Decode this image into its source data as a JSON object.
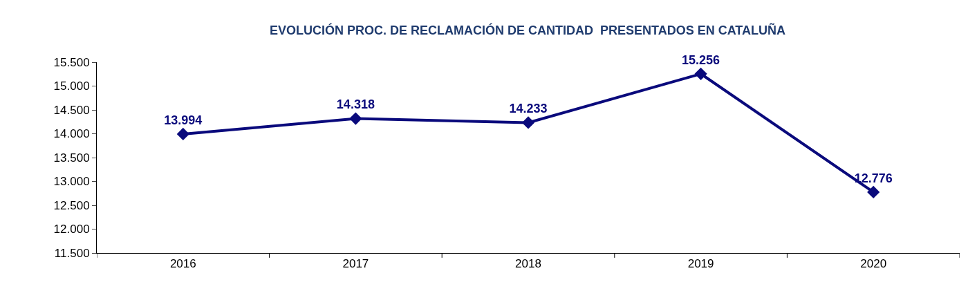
{
  "chart_data": {
    "type": "line",
    "title": "EVOLUCIÓN PROC. DE RECLAMACIÓN DE CANTIDAD  PRESENTADOS EN CATALUÑA",
    "categories": [
      "2016",
      "2017",
      "2018",
      "2019",
      "2020"
    ],
    "series": [
      {
        "color": "#0a0a7c",
        "values": [
          13994,
          14318,
          14233,
          15256,
          12776
        ]
      }
    ],
    "value_labels": [
      "13.994",
      "14.318",
      "14.233",
      "15.256",
      "12.776"
    ],
    "ylim": [
      11500,
      15500
    ],
    "yticks": [
      {
        "value": 11500,
        "label": "11.500"
      },
      {
        "value": 12000,
        "label": "12.000"
      },
      {
        "value": 12500,
        "label": "12.500"
      },
      {
        "value": 13000,
        "label": "13.000"
      },
      {
        "value": 13500,
        "label": "13.500"
      },
      {
        "value": 14000,
        "label": "14.000"
      },
      {
        "value": 14500,
        "label": "14.500"
      },
      {
        "value": 15000,
        "label": "15.000"
      },
      {
        "value": 15500,
        "label": "15.500"
      }
    ],
    "marker": "diamond",
    "line_style": "solid"
  }
}
